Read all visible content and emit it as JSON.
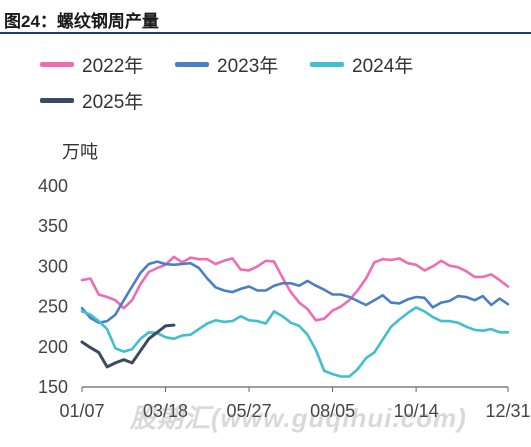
{
  "header": {
    "title": "图24：螺纹钢周产量"
  },
  "watermark": "股期汇(www.guqihui.com)",
  "chart_data": {
    "type": "line",
    "ylabel": "万吨",
    "ylim": [
      150,
      400
    ],
    "yticks": [
      150,
      200,
      250,
      300,
      350,
      400
    ],
    "xtick_labels": [
      "01/07",
      "03/18",
      "05/27",
      "08/05",
      "10/14",
      "12/31"
    ],
    "xtick_weeks": [
      1,
      11,
      21,
      31,
      41,
      52
    ],
    "legend_position": "top-left",
    "grid": false,
    "series": [
      {
        "name": "2022年",
        "color": "#f06bb5",
        "weeks": [
          1,
          2,
          3,
          4,
          5,
          6,
          7,
          8,
          9,
          10,
          11,
          12,
          13,
          14,
          15,
          16,
          17,
          18,
          19,
          20,
          21,
          22,
          23,
          24,
          25,
          26,
          27,
          28,
          29,
          30,
          31,
          32,
          33,
          34,
          35,
          36,
          37,
          38,
          39,
          40,
          41,
          42,
          43,
          44,
          45,
          46,
          47,
          48,
          49,
          50,
          51,
          52
        ],
        "values": [
          283,
          285,
          265,
          262,
          258,
          248,
          258,
          278,
          293,
          298,
          302,
          312,
          305,
          311,
          309,
          309,
          303,
          307,
          310,
          296,
          295,
          300,
          307,
          306,
          286,
          268,
          255,
          247,
          233,
          235,
          245,
          250,
          258,
          270,
          285,
          305,
          309,
          308,
          310,
          304,
          302,
          295,
          300,
          307,
          301,
          299,
          294,
          287,
          287,
          290,
          283,
          275
        ]
      },
      {
        "name": "2023年",
        "color": "#4a7fc8",
        "weeks": [
          1,
          2,
          3,
          4,
          5,
          6,
          7,
          8,
          9,
          10,
          11,
          12,
          13,
          14,
          15,
          16,
          17,
          18,
          19,
          20,
          21,
          22,
          23,
          24,
          25,
          26,
          27,
          28,
          29,
          30,
          31,
          32,
          33,
          34,
          35,
          36,
          37,
          38,
          39,
          40,
          41,
          42,
          43,
          44,
          45,
          46,
          47,
          48,
          49,
          50,
          51,
          52
        ],
        "values": [
          248,
          236,
          230,
          232,
          240,
          258,
          275,
          292,
          303,
          306,
          303,
          302,
          303,
          304,
          298,
          285,
          274,
          270,
          268,
          272,
          275,
          270,
          270,
          276,
          279,
          279,
          276,
          282,
          276,
          271,
          265,
          265,
          262,
          257,
          252,
          258,
          264,
          255,
          254,
          259,
          262,
          261,
          249,
          255,
          257,
          263,
          262,
          258,
          263,
          252,
          260,
          253
        ]
      },
      {
        "name": "2024年",
        "color": "#3fbfcf",
        "weeks": [
          1,
          2,
          3,
          4,
          5,
          6,
          7,
          8,
          9,
          10,
          11,
          12,
          13,
          14,
          15,
          16,
          17,
          18,
          19,
          20,
          21,
          22,
          23,
          24,
          25,
          26,
          27,
          28,
          29,
          30,
          31,
          32,
          33,
          34,
          35,
          36,
          37,
          38,
          39,
          40,
          41,
          42,
          43,
          44,
          45,
          46,
          47,
          48,
          49,
          50,
          51,
          52
        ],
        "values": [
          244,
          240,
          232,
          222,
          198,
          194,
          197,
          210,
          218,
          217,
          212,
          210,
          214,
          215,
          222,
          229,
          233,
          231,
          232,
          238,
          233,
          232,
          229,
          244,
          238,
          230,
          226,
          215,
          196,
          170,
          166,
          163,
          163,
          172,
          186,
          193,
          209,
          225,
          234,
          242,
          249,
          244,
          237,
          232,
          232,
          230,
          225,
          221,
          220,
          222,
          218,
          218
        ]
      },
      {
        "name": "2025年",
        "color": "#3a4a63",
        "weeks": [
          1,
          2,
          3,
          4,
          5,
          6,
          7,
          8,
          9,
          10,
          11,
          12
        ],
        "values": [
          206,
          199,
          193,
          175,
          180,
          184,
          180,
          195,
          210,
          218,
          226,
          227
        ]
      }
    ]
  }
}
